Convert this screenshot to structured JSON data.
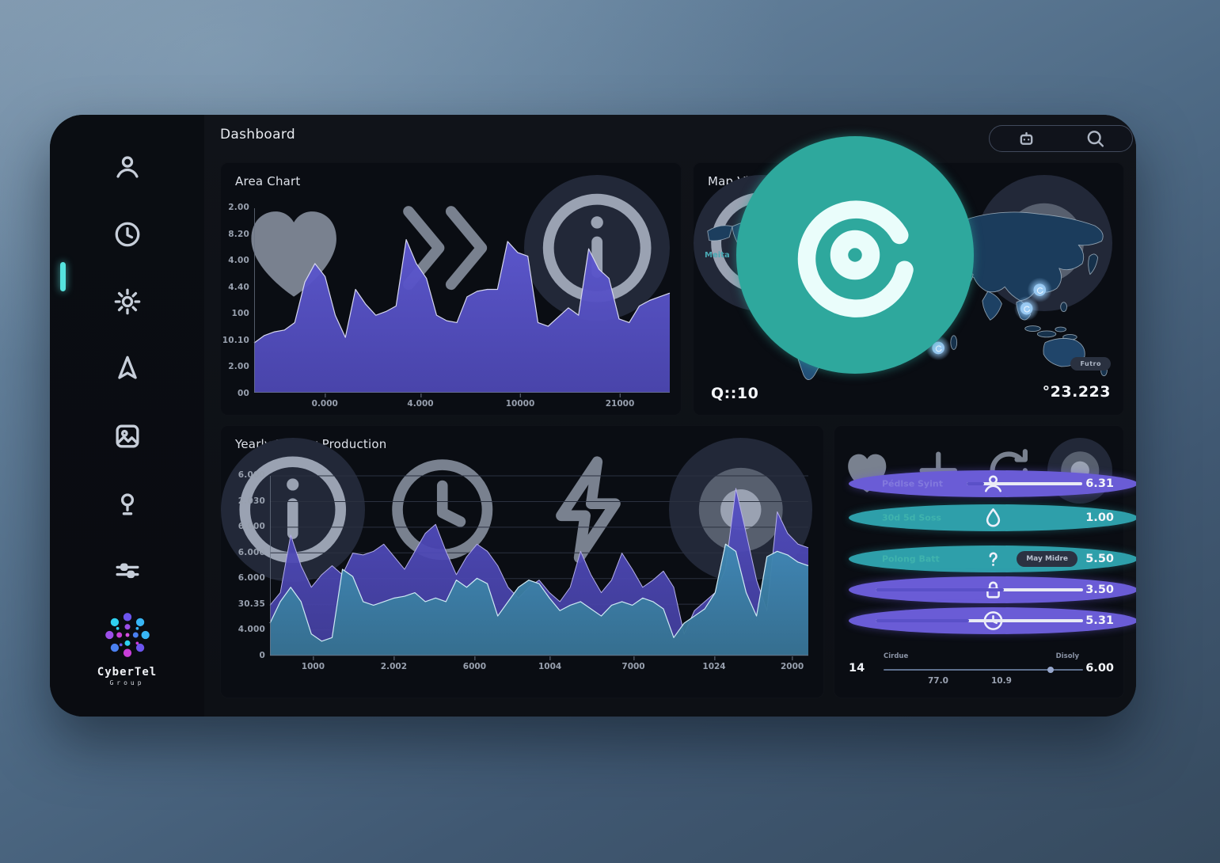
{
  "app": {
    "title": "Dashboard"
  },
  "search": {
    "value": "",
    "placeholder": ""
  },
  "sidebar": {
    "items": [
      {
        "icon": "user-icon"
      },
      {
        "icon": "clock-icon"
      },
      {
        "icon": "gear-icon"
      },
      {
        "icon": "navigation-icon"
      },
      {
        "icon": "gallery-icon"
      },
      {
        "icon": "pin-icon"
      },
      {
        "icon": "sliders-icon"
      }
    ],
    "brand": {
      "name": "CyberTel",
      "sub": "Group"
    }
  },
  "area_chart": {
    "title": "Area Chart",
    "header_icons": [
      "heart-icon",
      "share-icon",
      "info-icon"
    ],
    "y_ticks": [
      "2.00",
      "8.20",
      "4.00",
      "4.40",
      "100",
      "10.10",
      "2.00",
      "00"
    ],
    "x_ticks": [
      "0.000",
      "4.000",
      "10000",
      "21000"
    ]
  },
  "map_view": {
    "title": "Map View",
    "header_icons": [
      "info-icon",
      "refresh-icon",
      "badge-icon"
    ],
    "legend_label": "Meita",
    "legend_icon": "swirl-icon",
    "stat_value": "Q::10",
    "badge": "Futro",
    "coord_value": "°23.223",
    "markers": [
      {
        "x": 142,
        "y": 114
      },
      {
        "x": 262,
        "y": 104
      },
      {
        "x": 295,
        "y": 114
      },
      {
        "x": 316,
        "y": 123
      },
      {
        "x": 441,
        "y": 128
      },
      {
        "x": 424,
        "y": 152
      },
      {
        "x": 310,
        "y": 203
      }
    ]
  },
  "yearly_chart": {
    "title": "Yearly Energy Production",
    "header_icons": [
      "info-icon",
      "clock-icon",
      "flash-icon",
      "badge-icon"
    ],
    "y_ticks": [
      "6.000",
      "2.030",
      "6.000",
      "6.000",
      "6.000",
      "30.35",
      "4.000",
      "0"
    ],
    "x_ticks": [
      "1000",
      "2.002",
      "6000",
      "1004",
      "7000",
      "1024",
      "2000"
    ]
  },
  "stats": {
    "header_icons": [
      "heart-icon",
      "plus-icon",
      "refresh-icon",
      "badge-icon"
    ],
    "rows": [
      {
        "icon": "user-icon",
        "label": "Pédlse Syint",
        "value": "6.31",
        "bar_pct": 15,
        "accent": "purple"
      },
      {
        "icon": "drop-icon",
        "label": "30d 5d Soss",
        "value": "1.00",
        "accent": "teal"
      },
      {
        "icon": "question-icon",
        "label": "Polong Batt",
        "value": "5.50",
        "badge": "May Midre",
        "accent": "teal"
      },
      {
        "icon": "lock-icon",
        "label": "",
        "value": "3.50",
        "bar_pct": 62,
        "accent": "purple"
      },
      {
        "icon": "clock-icon",
        "label": "",
        "value": "5.31",
        "bar_pct": 45,
        "accent": "purple"
      }
    ],
    "footer": {
      "left_value": "14",
      "slider_label_left": "Cirdue",
      "slider_label_right": "Disoly",
      "tick_1": "77.0",
      "tick_2": "10.9",
      "value": "6.00",
      "slider_pct": 82
    }
  },
  "colors": {
    "accent_teal": "#55e3de",
    "area_fill": "#544fc4",
    "series_purple": "#4b46b4",
    "series_teal": "#3a7ea9",
    "bar_fill": "#5a50c8",
    "bar_track": "#e9ebf4",
    "marker_glow": "#9ccdf6"
  },
  "chart_data": [
    {
      "type": "area",
      "title": "Area Chart",
      "x_tick_labels": [
        "0.000",
        "4.000",
        "10000",
        "21000"
      ],
      "x_tick_pos_pct": [
        17,
        40,
        64,
        88
      ],
      "y_tick_labels": [
        "2.00",
        "8.20",
        "4.00",
        "4.40",
        "100",
        "10.10",
        "2.00",
        "00"
      ],
      "ylim": [
        0,
        100
      ],
      "grid": false,
      "series": [
        {
          "name": "main",
          "values": [
            27,
            31,
            33,
            34,
            38,
            60,
            70,
            63,
            42,
            30,
            56,
            48,
            42,
            44,
            47,
            83,
            70,
            62,
            42,
            39,
            38,
            52,
            55,
            56,
            56,
            82,
            76,
            74,
            38,
            36,
            41,
            46,
            42,
            78,
            67,
            62,
            40,
            38,
            47,
            50,
            52,
            54
          ]
        }
      ]
    },
    {
      "type": "area",
      "title": "Yearly Energy Production",
      "x_tick_labels": [
        "1000",
        "2.002",
        "6000",
        "1004",
        "7000",
        "1024",
        "2000"
      ],
      "x_tick_pos_pct": [
        8,
        23,
        38,
        52,
        67.5,
        82.5,
        97
      ],
      "y_tick_labels": [
        "6.000",
        "2.030",
        "6.000",
        "6.000",
        "6.000",
        "30.35",
        "4.000",
        "0"
      ],
      "ylim": [
        0,
        100
      ],
      "grid": true,
      "series": [
        {
          "name": "purple",
          "values": [
            28,
            35,
            67,
            50,
            38,
            45,
            50,
            45,
            57,
            56,
            58,
            62,
            55,
            48,
            58,
            68,
            73,
            58,
            45,
            55,
            62,
            58,
            50,
            38,
            32,
            38,
            42,
            35,
            30,
            38,
            58,
            45,
            35,
            42,
            57,
            48,
            38,
            42,
            47,
            38,
            12,
            25,
            30,
            35,
            48,
            93,
            68,
            42,
            25,
            80,
            68,
            62,
            60
          ]
        },
        {
          "name": "teal",
          "values": [
            18,
            30,
            38,
            30,
            12,
            8,
            10,
            48,
            44,
            30,
            28,
            30,
            32,
            33,
            35,
            30,
            32,
            30,
            42,
            38,
            43,
            40,
            22,
            30,
            38,
            42,
            40,
            32,
            25,
            28,
            30,
            26,
            22,
            28,
            30,
            28,
            32,
            30,
            26,
            10,
            18,
            22,
            26,
            35,
            62,
            58,
            35,
            22,
            55,
            58,
            56,
            52,
            50
          ]
        }
      ]
    }
  ]
}
